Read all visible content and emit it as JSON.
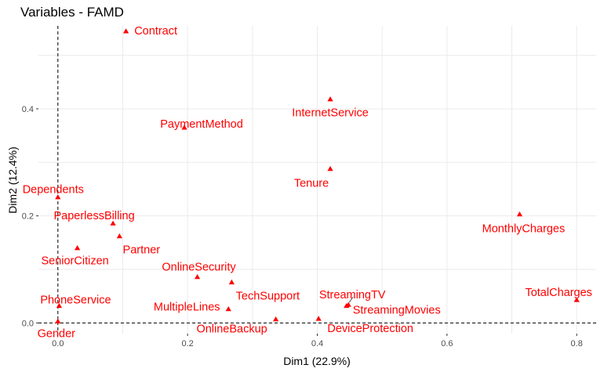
{
  "chart_data": {
    "type": "scatter",
    "title": "Variables - FAMD",
    "xlabel": "Dim1 (22.9%)",
    "ylabel": "Dim2 (12.4%)",
    "xlim": [
      -0.03,
      0.83
    ],
    "ylim": [
      -0.02,
      0.555
    ],
    "x_ticks": [
      0.0,
      0.2,
      0.4,
      0.6,
      0.8
    ],
    "x_tick_labels": [
      "0.0",
      "0.2",
      "0.4",
      "0.6",
      "0.8"
    ],
    "y_ticks": [
      0.0,
      0.2,
      0.4
    ],
    "y_tick_labels": [
      "0.0",
      "0.2",
      "0.4"
    ],
    "grid": true,
    "reference_lines": {
      "x": 0,
      "y": 0,
      "style": "dashed"
    },
    "point_color": "#ff0000",
    "marker": "triangle",
    "points": [
      {
        "label": "Contract",
        "x": 0.105,
        "y": 0.545
      },
      {
        "label": "InternetService",
        "x": 0.42,
        "y": 0.418
      },
      {
        "label": "PaymentMethod",
        "x": 0.195,
        "y": 0.365
      },
      {
        "label": "Tenure",
        "x": 0.42,
        "y": 0.288
      },
      {
        "label": "Dependents",
        "x": 0.0,
        "y": 0.235
      },
      {
        "label": "MonthlyCharges",
        "x": 0.712,
        "y": 0.203
      },
      {
        "label": "PaperlessBilling",
        "x": 0.085,
        "y": 0.186
      },
      {
        "label": "Partner",
        "x": 0.095,
        "y": 0.162
      },
      {
        "label": "SeniorCitizen",
        "x": 0.03,
        "y": 0.14
      },
      {
        "label": "OnlineSecurity",
        "x": 0.215,
        "y": 0.086
      },
      {
        "label": "TechSupport",
        "x": 0.268,
        "y": 0.076
      },
      {
        "label": "PhoneService",
        "x": 0.002,
        "y": 0.032
      },
      {
        "label": "StreamingTV",
        "x": 0.448,
        "y": 0.034
      },
      {
        "label": "StreamingMovies",
        "x": 0.445,
        "y": 0.032
      },
      {
        "label": "TotalCharges",
        "x": 0.8,
        "y": 0.043
      },
      {
        "label": "MultipleLines",
        "x": 0.263,
        "y": 0.026
      },
      {
        "label": "OnlineBackup",
        "x": 0.336,
        "y": 0.007
      },
      {
        "label": "DeviceProtection",
        "x": 0.402,
        "y": 0.008
      },
      {
        "label": "Gender",
        "x": 0.0,
        "y": 0.003
      }
    ]
  }
}
